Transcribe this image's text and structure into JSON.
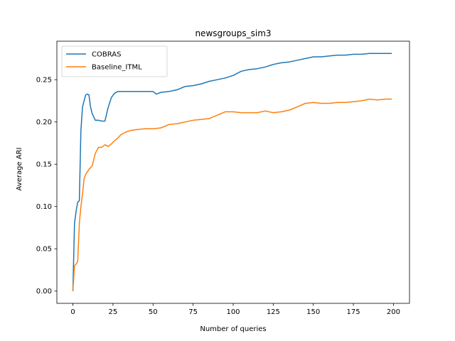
{
  "chart_data": {
    "type": "line",
    "title": "newsgroups_sim3",
    "xlabel": "Number of queries",
    "ylabel": "Average ARI",
    "xlim": [
      -10,
      210
    ],
    "ylim": [
      -0.0145,
      0.2955
    ],
    "xticks": [
      0,
      25,
      50,
      75,
      100,
      125,
      150,
      175,
      200
    ],
    "yticks": [
      0.0,
      0.05,
      0.1,
      0.15,
      0.2,
      0.25
    ],
    "grid": false,
    "legend_position": "top-left",
    "series": [
      {
        "name": "COBRAS",
        "color": "#1f77b4",
        "x": [
          0,
          1,
          2,
          3,
          4,
          5,
          6,
          7,
          8,
          9,
          10,
          11,
          12,
          14,
          16,
          18,
          20,
          22,
          24,
          26,
          28,
          30,
          33,
          36,
          40,
          45,
          50,
          52,
          55,
          60,
          65,
          70,
          75,
          80,
          85,
          90,
          95,
          100,
          105,
          110,
          115,
          120,
          125,
          130,
          135,
          140,
          145,
          150,
          155,
          160,
          165,
          170,
          175,
          180,
          185,
          190,
          195,
          199
        ],
        "y": [
          0.0,
          0.08,
          0.095,
          0.105,
          0.107,
          0.19,
          0.218,
          0.225,
          0.232,
          0.233,
          0.232,
          0.218,
          0.21,
          0.202,
          0.202,
          0.201,
          0.201,
          0.217,
          0.229,
          0.234,
          0.236,
          0.236,
          0.236,
          0.236,
          0.236,
          0.236,
          0.236,
          0.233,
          0.235,
          0.236,
          0.238,
          0.242,
          0.243,
          0.245,
          0.248,
          0.25,
          0.252,
          0.255,
          0.26,
          0.262,
          0.263,
          0.265,
          0.268,
          0.27,
          0.271,
          0.273,
          0.275,
          0.277,
          0.277,
          0.278,
          0.279,
          0.279,
          0.28,
          0.28,
          0.281,
          0.281,
          0.281,
          0.281
        ]
      },
      {
        "name": "Baseline_ITML",
        "color": "#ff7f0e",
        "x": [
          0,
          1,
          2,
          3,
          4,
          5,
          6,
          7,
          8,
          9,
          10,
          12,
          14,
          16,
          18,
          20,
          22,
          24,
          26,
          28,
          30,
          33,
          36,
          40,
          45,
          50,
          55,
          60,
          65,
          70,
          75,
          80,
          85,
          90,
          95,
          100,
          105,
          110,
          115,
          120,
          125,
          130,
          135,
          140,
          145,
          150,
          155,
          160,
          165,
          170,
          175,
          180,
          185,
          190,
          195,
          199
        ],
        "y": [
          0.0,
          0.03,
          0.032,
          0.035,
          0.08,
          0.1,
          0.115,
          0.133,
          0.138,
          0.141,
          0.144,
          0.148,
          0.163,
          0.17,
          0.17,
          0.173,
          0.171,
          0.174,
          0.178,
          0.181,
          0.185,
          0.188,
          0.19,
          0.191,
          0.192,
          0.192,
          0.193,
          0.197,
          0.198,
          0.2,
          0.202,
          0.203,
          0.204,
          0.208,
          0.212,
          0.212,
          0.211,
          0.211,
          0.211,
          0.213,
          0.211,
          0.212,
          0.214,
          0.218,
          0.222,
          0.223,
          0.222,
          0.222,
          0.223,
          0.223,
          0.224,
          0.225,
          0.227,
          0.226,
          0.227,
          0.227
        ]
      }
    ]
  }
}
